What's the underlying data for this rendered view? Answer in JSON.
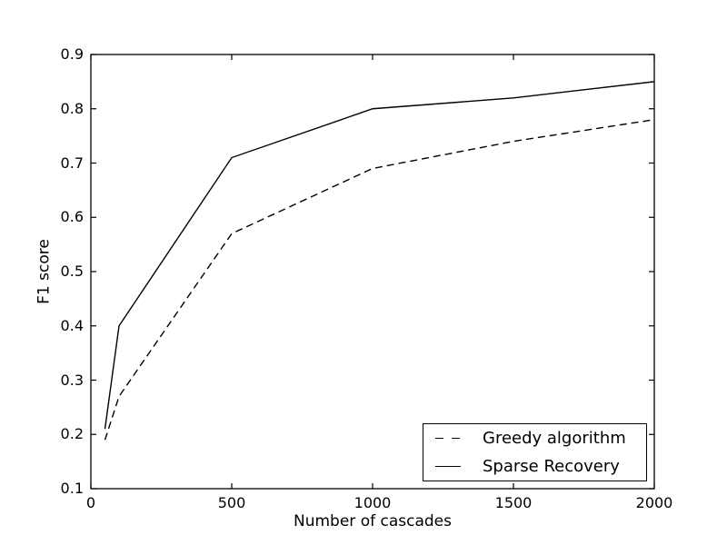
{
  "figure": {
    "background_color": "#ffffff",
    "foreground_color": "#000000"
  },
  "chart_data": {
    "type": "line",
    "title": "",
    "xlabel": "Number of cascades",
    "ylabel": "F1 score",
    "xlim": [
      0,
      2000
    ],
    "ylim": [
      0.1,
      0.9
    ],
    "grid": false,
    "xticks": [
      0,
      500,
      1000,
      1500,
      2000
    ],
    "xtick_labels": [
      "0",
      "500",
      "1000",
      "1500",
      "2000"
    ],
    "yticks": [
      0.1,
      0.2,
      0.3,
      0.4,
      0.5,
      0.6,
      0.7,
      0.8,
      0.9
    ],
    "ytick_labels": [
      "0.1",
      "0.2",
      "0.3",
      "0.4",
      "0.5",
      "0.6",
      "0.7",
      "0.8",
      "0.9"
    ],
    "x": [
      50,
      100,
      500,
      1000,
      1500,
      2000
    ],
    "series": [
      {
        "name": "Greedy algorithm",
        "style": "dashed",
        "color": "#000000",
        "values": [
          0.19,
          0.27,
          0.57,
          0.69,
          0.74,
          0.78
        ]
      },
      {
        "name": "Sparse Recovery",
        "style": "solid",
        "color": "#000000",
        "values": [
          0.21,
          0.4,
          0.71,
          0.8,
          0.82,
          0.85
        ]
      }
    ],
    "legend": {
      "position": "lower right",
      "entries": [
        "Greedy algorithm",
        "Sparse Recovery"
      ]
    }
  }
}
